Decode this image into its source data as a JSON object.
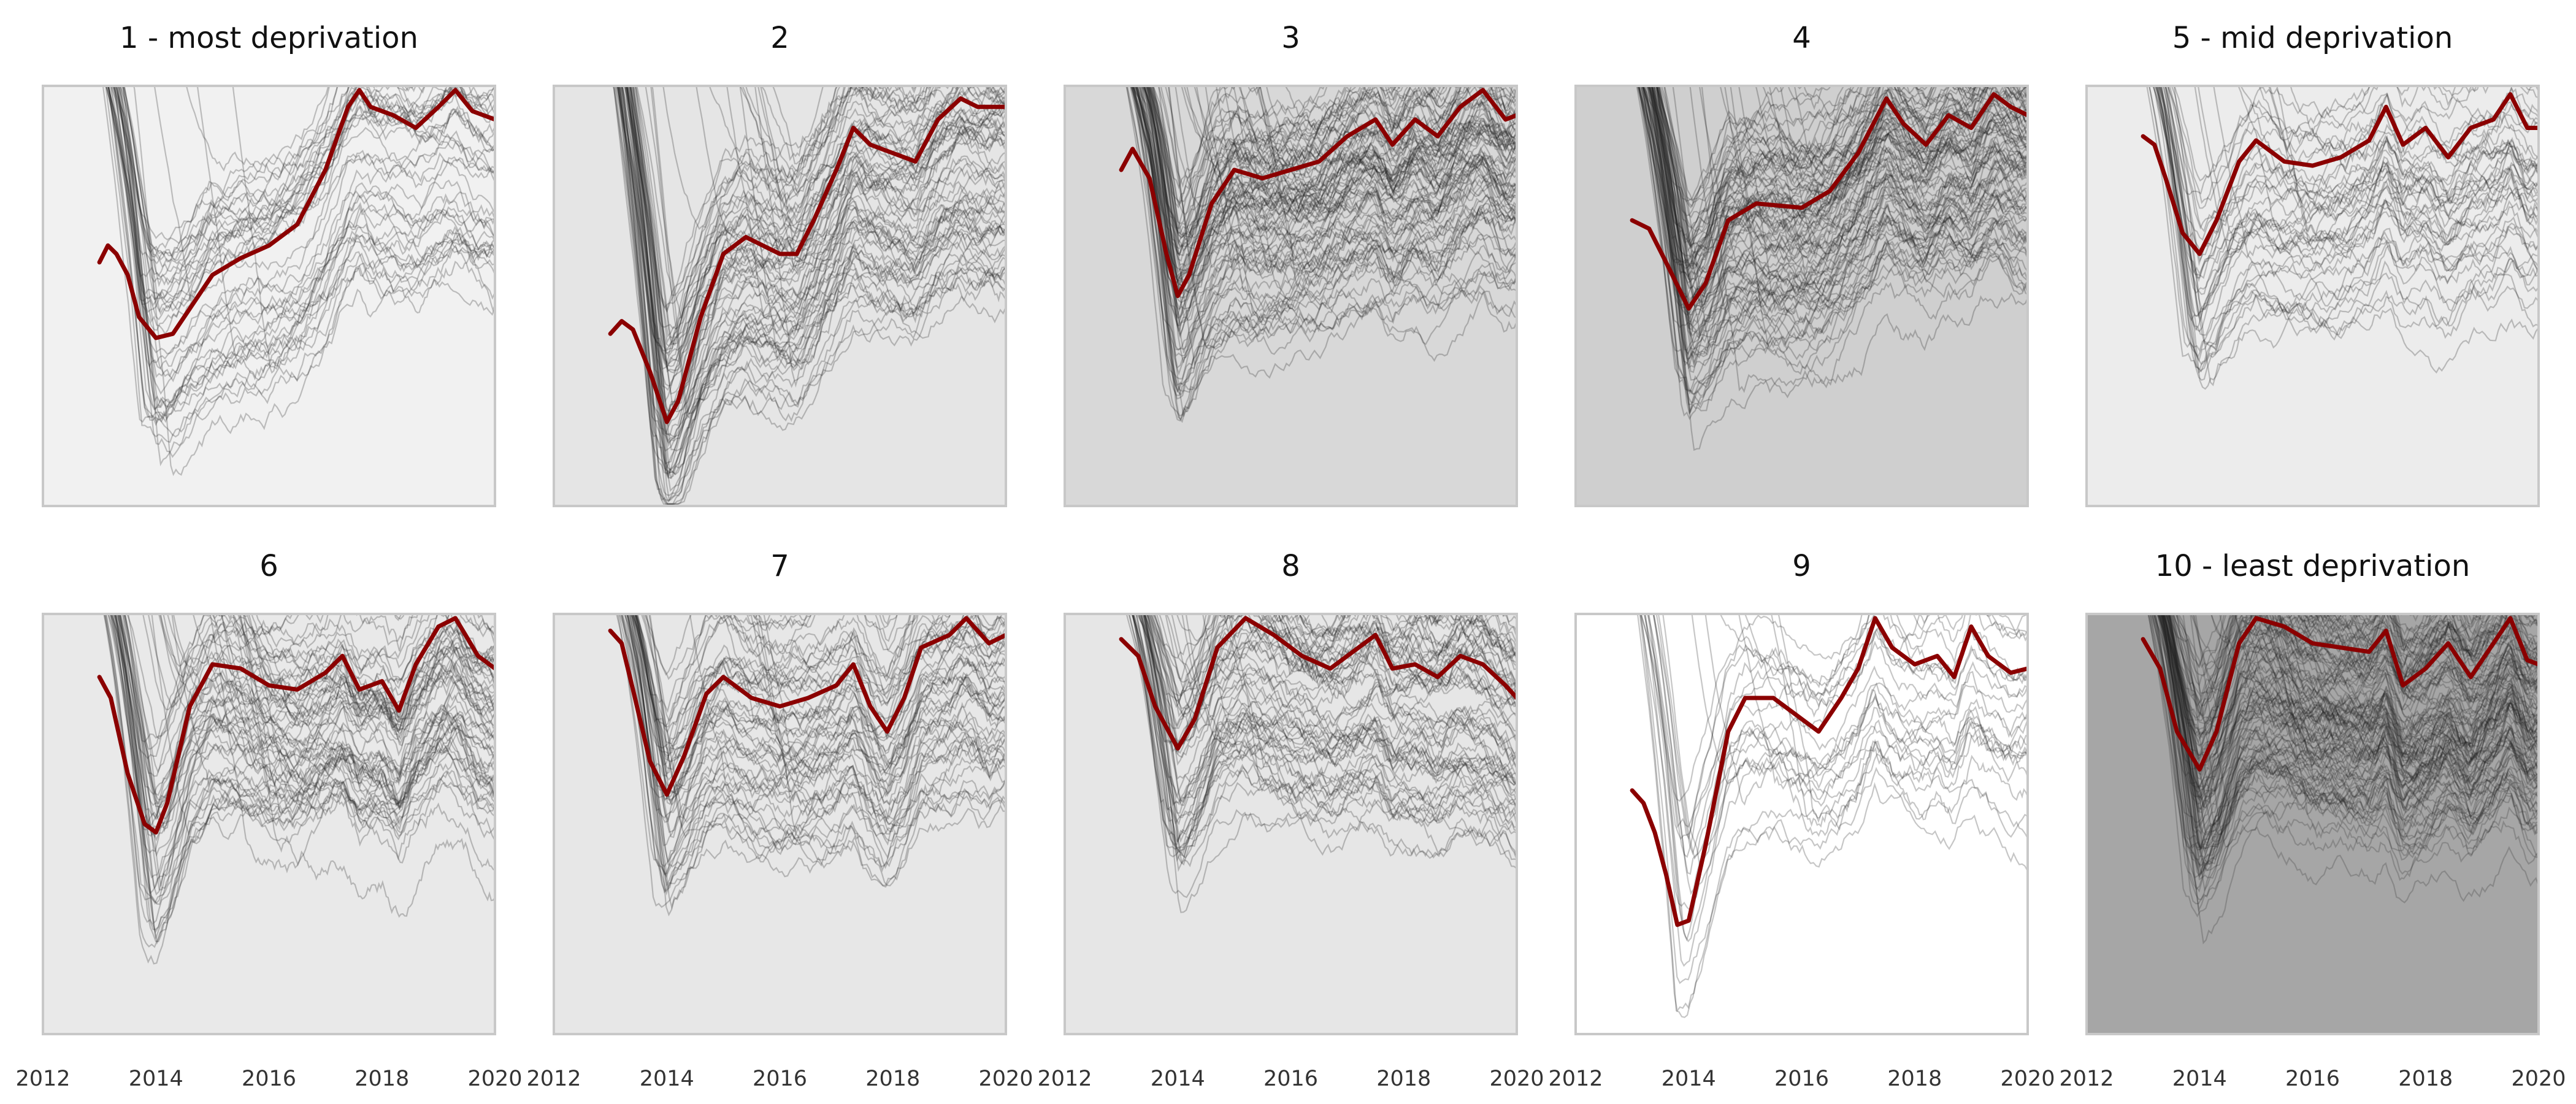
{
  "chart_data": {
    "type": "line",
    "layout": "small-multiples 2x5",
    "x_range": [
      2012,
      2020
    ],
    "x_ticks": [
      "2012",
      "2014",
      "2016",
      "2018",
      "2020"
    ],
    "highlight_color": "#8b0000",
    "background_color_light": "#ffffff",
    "background_color_dark": "#a6a6a6",
    "panels": [
      {
        "title": "1 - most deprivation",
        "background": "#f1f1f1",
        "grey_lines": 45,
        "highlight": [
          [
            2013.0,
            0.58
          ],
          [
            2013.15,
            0.62
          ],
          [
            2013.3,
            0.6
          ],
          [
            2013.5,
            0.55
          ],
          [
            2013.7,
            0.45
          ],
          [
            2014.0,
            0.4
          ],
          [
            2014.3,
            0.41
          ],
          [
            2014.6,
            0.47
          ],
          [
            2015.0,
            0.55
          ],
          [
            2015.5,
            0.59
          ],
          [
            2016.0,
            0.62
          ],
          [
            2016.5,
            0.67
          ],
          [
            2017.0,
            0.8
          ],
          [
            2017.4,
            0.95
          ],
          [
            2017.6,
            0.99
          ],
          [
            2017.8,
            0.95
          ],
          [
            2018.2,
            0.93
          ],
          [
            2018.6,
            0.9
          ],
          [
            2019.0,
            0.95
          ],
          [
            2019.3,
            0.99
          ],
          [
            2019.6,
            0.94
          ],
          [
            2020.0,
            0.92
          ]
        ]
      },
      {
        "title": "2",
        "background": "#e5e5e5",
        "grey_lines": 75,
        "highlight": [
          [
            2013.0,
            0.41
          ],
          [
            2013.2,
            0.44
          ],
          [
            2013.4,
            0.42
          ],
          [
            2013.7,
            0.32
          ],
          [
            2014.0,
            0.2
          ],
          [
            2014.2,
            0.25
          ],
          [
            2014.6,
            0.45
          ],
          [
            2015.0,
            0.6
          ],
          [
            2015.4,
            0.64
          ],
          [
            2016.0,
            0.6
          ],
          [
            2016.3,
            0.6
          ],
          [
            2016.6,
            0.68
          ],
          [
            2017.0,
            0.8
          ],
          [
            2017.3,
            0.9
          ],
          [
            2017.6,
            0.86
          ],
          [
            2018.0,
            0.84
          ],
          [
            2018.4,
            0.82
          ],
          [
            2018.8,
            0.92
          ],
          [
            2019.2,
            0.97
          ],
          [
            2019.5,
            0.95
          ],
          [
            2020.0,
            0.95
          ]
        ]
      },
      {
        "title": "3",
        "background": "#d8d8d8",
        "grey_lines": 100,
        "highlight": [
          [
            2013.0,
            0.8
          ],
          [
            2013.2,
            0.85
          ],
          [
            2013.5,
            0.78
          ],
          [
            2013.8,
            0.6
          ],
          [
            2014.0,
            0.5
          ],
          [
            2014.2,
            0.55
          ],
          [
            2014.6,
            0.72
          ],
          [
            2015.0,
            0.8
          ],
          [
            2015.5,
            0.78
          ],
          [
            2016.0,
            0.8
          ],
          [
            2016.5,
            0.82
          ],
          [
            2017.0,
            0.88
          ],
          [
            2017.5,
            0.92
          ],
          [
            2017.8,
            0.86
          ],
          [
            2018.2,
            0.92
          ],
          [
            2018.6,
            0.88
          ],
          [
            2019.0,
            0.95
          ],
          [
            2019.4,
            0.99
          ],
          [
            2019.8,
            0.92
          ],
          [
            2020.0,
            0.93
          ]
        ]
      },
      {
        "title": "4",
        "background": "#cfcfcf",
        "grey_lines": 100,
        "highlight": [
          [
            2013.0,
            0.68
          ],
          [
            2013.3,
            0.66
          ],
          [
            2013.6,
            0.58
          ],
          [
            2014.0,
            0.47
          ],
          [
            2014.3,
            0.53
          ],
          [
            2014.7,
            0.68
          ],
          [
            2015.2,
            0.72
          ],
          [
            2016.0,
            0.71
          ],
          [
            2016.5,
            0.75
          ],
          [
            2017.0,
            0.84
          ],
          [
            2017.5,
            0.97
          ],
          [
            2017.8,
            0.91
          ],
          [
            2018.2,
            0.86
          ],
          [
            2018.6,
            0.93
          ],
          [
            2019.0,
            0.9
          ],
          [
            2019.4,
            0.98
          ],
          [
            2019.7,
            0.95
          ],
          [
            2020.0,
            0.93
          ]
        ]
      },
      {
        "title": "5 - mid deprivation",
        "background": "#ececec",
        "grey_lines": 45,
        "highlight": [
          [
            2013.0,
            0.88
          ],
          [
            2013.2,
            0.86
          ],
          [
            2013.4,
            0.78
          ],
          [
            2013.7,
            0.65
          ],
          [
            2014.0,
            0.6
          ],
          [
            2014.3,
            0.68
          ],
          [
            2014.7,
            0.82
          ],
          [
            2015.0,
            0.87
          ],
          [
            2015.5,
            0.82
          ],
          [
            2016.0,
            0.81
          ],
          [
            2016.5,
            0.83
          ],
          [
            2017.0,
            0.87
          ],
          [
            2017.3,
            0.95
          ],
          [
            2017.6,
            0.86
          ],
          [
            2018.0,
            0.9
          ],
          [
            2018.4,
            0.83
          ],
          [
            2018.8,
            0.9
          ],
          [
            2019.2,
            0.92
          ],
          [
            2019.5,
            0.98
          ],
          [
            2019.8,
            0.9
          ],
          [
            2020.0,
            0.9
          ]
        ]
      },
      {
        "title": "6",
        "background": "#e9e9e9",
        "grey_lines": 65,
        "highlight": [
          [
            2013.0,
            0.85
          ],
          [
            2013.2,
            0.8
          ],
          [
            2013.5,
            0.62
          ],
          [
            2013.8,
            0.5
          ],
          [
            2014.0,
            0.48
          ],
          [
            2014.2,
            0.55
          ],
          [
            2014.6,
            0.78
          ],
          [
            2015.0,
            0.88
          ],
          [
            2015.5,
            0.87
          ],
          [
            2016.0,
            0.83
          ],
          [
            2016.5,
            0.82
          ],
          [
            2017.0,
            0.86
          ],
          [
            2017.3,
            0.9
          ],
          [
            2017.6,
            0.82
          ],
          [
            2018.0,
            0.84
          ],
          [
            2018.3,
            0.77
          ],
          [
            2018.6,
            0.88
          ],
          [
            2019.0,
            0.97
          ],
          [
            2019.3,
            0.99
          ],
          [
            2019.7,
            0.9
          ],
          [
            2020.0,
            0.87
          ]
        ]
      },
      {
        "title": "7",
        "background": "#e7e7e7",
        "grey_lines": 60,
        "highlight": [
          [
            2013.0,
            0.96
          ],
          [
            2013.2,
            0.93
          ],
          [
            2013.4,
            0.82
          ],
          [
            2013.7,
            0.65
          ],
          [
            2014.0,
            0.57
          ],
          [
            2014.3,
            0.66
          ],
          [
            2014.7,
            0.81
          ],
          [
            2015.0,
            0.85
          ],
          [
            2015.5,
            0.8
          ],
          [
            2016.0,
            0.78
          ],
          [
            2016.5,
            0.8
          ],
          [
            2017.0,
            0.83
          ],
          [
            2017.3,
            0.88
          ],
          [
            2017.6,
            0.78
          ],
          [
            2017.9,
            0.72
          ],
          [
            2018.2,
            0.8
          ],
          [
            2018.5,
            0.92
          ],
          [
            2019.0,
            0.95
          ],
          [
            2019.3,
            0.99
          ],
          [
            2019.7,
            0.93
          ],
          [
            2020.0,
            0.95
          ]
        ]
      },
      {
        "title": "8",
        "background": "#e6e6e6",
        "grey_lines": 70,
        "highlight": [
          [
            2013.0,
            0.94
          ],
          [
            2013.3,
            0.9
          ],
          [
            2013.6,
            0.78
          ],
          [
            2014.0,
            0.68
          ],
          [
            2014.3,
            0.75
          ],
          [
            2014.7,
            0.92
          ],
          [
            2015.2,
            0.99
          ],
          [
            2015.7,
            0.95
          ],
          [
            2016.2,
            0.9
          ],
          [
            2016.7,
            0.87
          ],
          [
            2017.2,
            0.92
          ],
          [
            2017.5,
            0.95
          ],
          [
            2017.8,
            0.87
          ],
          [
            2018.2,
            0.88
          ],
          [
            2018.6,
            0.85
          ],
          [
            2019.0,
            0.9
          ],
          [
            2019.4,
            0.88
          ],
          [
            2019.8,
            0.83
          ],
          [
            2020.0,
            0.8
          ]
        ]
      },
      {
        "title": "9",
        "background": "#ffffff",
        "grey_lines": 25,
        "highlight": [
          [
            2013.0,
            0.58
          ],
          [
            2013.2,
            0.55
          ],
          [
            2013.4,
            0.48
          ],
          [
            2013.6,
            0.38
          ],
          [
            2013.8,
            0.26
          ],
          [
            2014.0,
            0.27
          ],
          [
            2014.3,
            0.45
          ],
          [
            2014.7,
            0.72
          ],
          [
            2015.0,
            0.8
          ],
          [
            2015.5,
            0.8
          ],
          [
            2016.0,
            0.75
          ],
          [
            2016.3,
            0.72
          ],
          [
            2016.7,
            0.8
          ],
          [
            2017.0,
            0.87
          ],
          [
            2017.3,
            0.99
          ],
          [
            2017.6,
            0.92
          ],
          [
            2018.0,
            0.88
          ],
          [
            2018.4,
            0.9
          ],
          [
            2018.7,
            0.85
          ],
          [
            2019.0,
            0.97
          ],
          [
            2019.3,
            0.9
          ],
          [
            2019.7,
            0.86
          ],
          [
            2020.0,
            0.87
          ]
        ]
      },
      {
        "title": "10 - least deprivation",
        "background": "#a6a6a6",
        "grey_lines": 130,
        "highlight": [
          [
            2013.0,
            0.94
          ],
          [
            2013.3,
            0.87
          ],
          [
            2013.6,
            0.72
          ],
          [
            2014.0,
            0.63
          ],
          [
            2014.3,
            0.72
          ],
          [
            2014.7,
            0.93
          ],
          [
            2015.0,
            0.99
          ],
          [
            2015.5,
            0.97
          ],
          [
            2016.0,
            0.93
          ],
          [
            2016.5,
            0.92
          ],
          [
            2017.0,
            0.91
          ],
          [
            2017.3,
            0.96
          ],
          [
            2017.6,
            0.83
          ],
          [
            2018.0,
            0.87
          ],
          [
            2018.4,
            0.93
          ],
          [
            2018.8,
            0.85
          ],
          [
            2019.2,
            0.93
          ],
          [
            2019.5,
            0.99
          ],
          [
            2019.8,
            0.89
          ],
          [
            2020.0,
            0.88
          ]
        ]
      }
    ]
  }
}
